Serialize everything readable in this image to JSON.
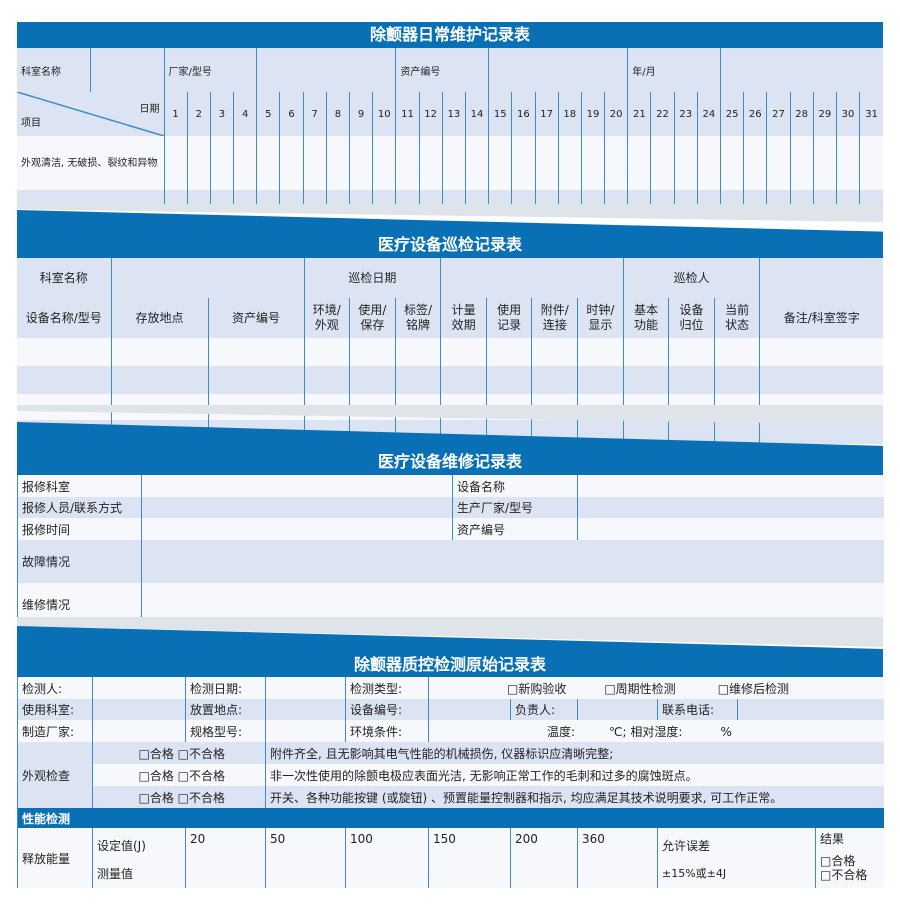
{
  "colors": {
    "accent": "#0a70b5",
    "row_light": "#dce3f2",
    "line": "#3a8ccc"
  },
  "daily": {
    "title": "除颤器日常维护记录表",
    "dept": "科室名称",
    "maker": "厂家/型号",
    "asset": "资产编号",
    "month": "年/月",
    "item": "项目",
    "date": "日期",
    "days": [
      "1",
      "2",
      "3",
      "4",
      "5",
      "6",
      "7",
      "8",
      "9",
      "10",
      "11",
      "12",
      "13",
      "14",
      "15",
      "16",
      "17",
      "18",
      "19",
      "20",
      "21",
      "22",
      "23",
      "24",
      "25",
      "26",
      "27",
      "28",
      "29",
      "30",
      "31"
    ],
    "check1": "外观清洁, 无破损、裂纹和异物"
  },
  "patrol": {
    "title": "医疗设备巡检记录表",
    "dept": "科室名称",
    "date": "巡检日期",
    "inspector": "巡检人",
    "cols": [
      "设备名称/型号",
      "存放地点",
      "资产编号",
      "环境/外观",
      "使用/保存",
      "标签/铭牌",
      "计量效期",
      "使用记录",
      "附件/连接",
      "时钟/显示",
      "基本功能",
      "设备归位",
      "当前状态",
      "备注/科室签字"
    ]
  },
  "repair": {
    "title": "医疗设备维修记录表",
    "dept": "报修科室",
    "device": "设备名称",
    "person": "报修人员/联系方式",
    "maker": "生产厂家/型号",
    "time": "报修时间",
    "asset": "资产编号",
    "fault": "故障情况",
    "repair": "维修情况"
  },
  "qc": {
    "title": "除颤器质控检测原始记录表",
    "tester": "检测人:",
    "test_date": "检测日期:",
    "test_type": "检测类型:",
    "types": [
      "□新购验收",
      "□周期性检测",
      "□维修后检测"
    ],
    "dept": "使用科室:",
    "location": "放置地点:",
    "device_no": "设备编号:",
    "owner": "负责人:",
    "phone": "联系电话:",
    "maker": "制造厂家:",
    "model": "规格型号:",
    "env": "环境条件:",
    "temp": "温度:",
    "temp_unit": "℃;",
    "humidity": "相对湿度:",
    "hum_unit": "%",
    "visual": "外观检查",
    "pass_fail": "□合格 □不合格",
    "visual_items": [
      "附件齐全, 且无影响其电气性能的机械损伤, 仪器标识应清晰完整;",
      "非一次性使用的除颤电极应表面光洁, 无影响正常工作的毛刺和过多的腐蚀斑点。",
      "开关、各种功能按键 (或旋钮) 、预置能量控制器和指示, 均应满足其技术说明要求, 可工作正常。"
    ],
    "perf": "性能检测",
    "energy": "释放能量",
    "set": "设定值(J)",
    "measured": "测量值",
    "settings": [
      "20",
      "50",
      "100",
      "150",
      "200",
      "360"
    ],
    "tolerance": "允许误差",
    "tolerance_val": "±15%或±4J",
    "result": "结果",
    "pass": "□合格",
    "fail": "□不合格"
  }
}
